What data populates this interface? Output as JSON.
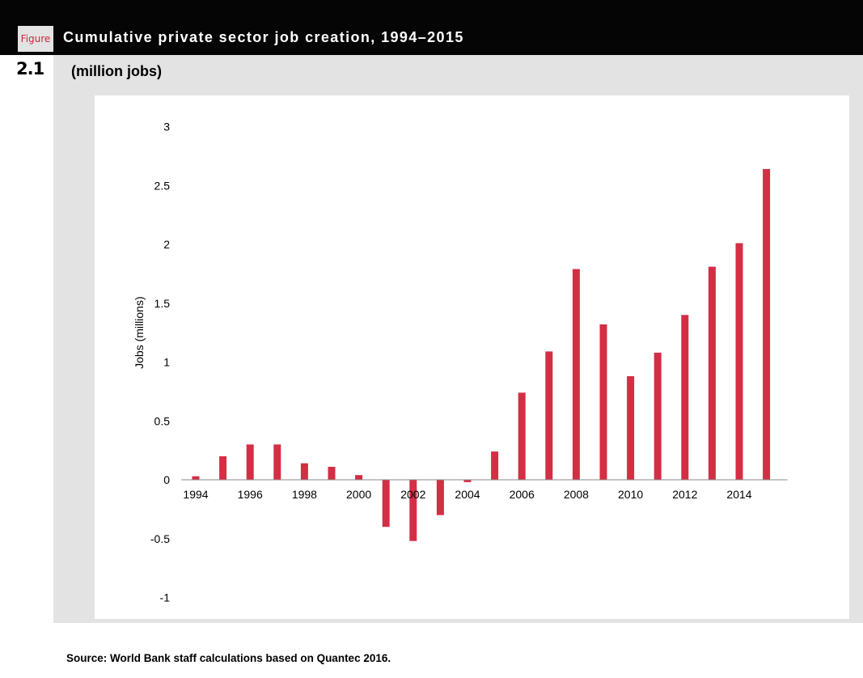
{
  "figure": {
    "word": "Figure",
    "number": "2.1",
    "title": "Cumulative private sector job creation, 1994–2015",
    "subtitle": "(million jobs)",
    "source": "Source: World Bank staff calculations based on Quantec 2016."
  },
  "colors": {
    "bar": "#d42e45",
    "header_bg": "#050505",
    "panel_bg": "#e3e3e3",
    "axis": "#888888"
  },
  "chart_data": {
    "type": "bar",
    "title": "Cumulative private sector job creation, 1994–2015",
    "subtitle": "(million jobs)",
    "xlabel": "",
    "ylabel": "Jobs (millions)",
    "ylim": [
      -1,
      3
    ],
    "yticks": [
      -1,
      -0.5,
      0,
      0.5,
      1,
      1.5,
      2,
      2.5,
      3
    ],
    "ytick_labels": [
      "-1",
      "-0.5",
      "0",
      "0.5",
      "1",
      "1.5",
      "2",
      "2.5",
      "3"
    ],
    "xtick_labels": [
      "1994",
      "1996",
      "1998",
      "2000",
      "2002",
      "2004",
      "2006",
      "2008",
      "2010",
      "2012",
      "2014"
    ],
    "grid": false,
    "legend": "none",
    "categories": [
      "1994",
      "1995",
      "1996",
      "1997",
      "1998",
      "1999",
      "2000",
      "2001",
      "2002",
      "2003",
      "2004",
      "2005",
      "2006",
      "2007",
      "2008",
      "2009",
      "2010",
      "2011",
      "2012",
      "2013",
      "2014",
      "2015"
    ],
    "values": [
      0.03,
      0.2,
      0.3,
      0.3,
      0.14,
      0.11,
      0.04,
      -0.4,
      -0.52,
      -0.3,
      -0.02,
      0.24,
      0.74,
      1.09,
      1.79,
      1.32,
      0.88,
      1.08,
      1.4,
      1.81,
      2.01,
      2.64
    ]
  }
}
